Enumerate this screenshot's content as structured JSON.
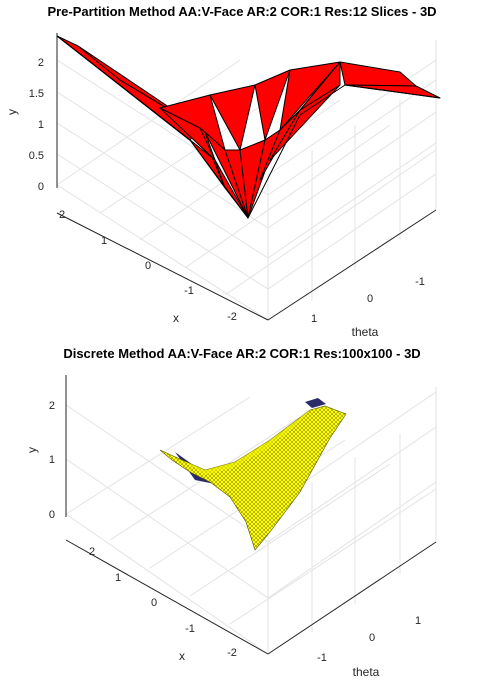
{
  "chart_data": [
    {
      "type": "surface",
      "title": "Pre-Partition Method AA:V-Face AR:2 COR:1 Res:12 Slices - 3D",
      "xlabel": "x",
      "ylabel": "y",
      "zlabel": "theta",
      "xticks": [
        "2",
        "1",
        "0",
        "-1",
        "-2"
      ],
      "yticks": [
        "0",
        "0.5",
        "1",
        "1.5",
        "2"
      ],
      "thetaticks": [
        "1",
        "0",
        "-1"
      ],
      "xlim": [
        -2.4,
        2.4
      ],
      "ylim": [
        0,
        2.4
      ],
      "face_color": "#ff0000",
      "edge_color": "#000000",
      "grid": true
    },
    {
      "type": "surface",
      "title": "Discrete Method AA:V-Face AR:2 COR:1 Res:100x100 - 3D",
      "xlabel": "x",
      "ylabel": "y",
      "zlabel": "theta",
      "xticks": [
        "2",
        "1",
        "0",
        "-1",
        "-2"
      ],
      "yticks": [
        "0",
        "1",
        "2"
      ],
      "thetaticks": [
        "1",
        "0",
        "-1"
      ],
      "xlim": [
        -2.4,
        2.4
      ],
      "ylim": [
        0,
        2.4
      ],
      "face_color": "#ffff00",
      "edge_color": "#1a1a1a",
      "grid": true
    }
  ]
}
